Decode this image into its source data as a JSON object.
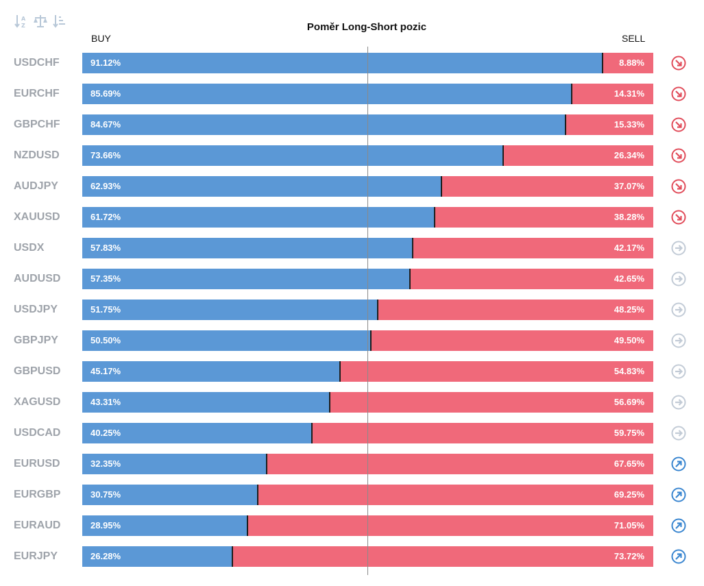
{
  "toolbar": {
    "items": [
      {
        "name": "sort-alpha-icon"
      },
      {
        "name": "balance-scale-icon"
      },
      {
        "name": "sort-list-icon"
      }
    ]
  },
  "colors": {
    "buy": "#5b98d6",
    "sell": "#f0697a",
    "down": "#e14c5a",
    "neutral": "#c2cbd6",
    "up": "#3a86d0"
  },
  "chart_data": {
    "type": "bar",
    "title": "Poměr Long-Short pozic",
    "buy_label": "BUY",
    "sell_label": "SELL",
    "categories": [
      "USDCHF",
      "EURCHF",
      "GBPCHF",
      "NZDUSD",
      "AUDJPY",
      "XAUUSD",
      "USDX",
      "AUDUSD",
      "USDJPY",
      "GBPJPY",
      "GBPUSD",
      "XAGUSD",
      "USDCAD",
      "EURUSD",
      "EURGBP",
      "EURAUD",
      "EURJPY"
    ],
    "series": [
      {
        "name": "BUY",
        "values": [
          91.12,
          85.69,
          84.67,
          73.66,
          62.93,
          61.72,
          57.83,
          57.35,
          51.75,
          50.5,
          45.17,
          43.31,
          40.25,
          32.35,
          30.75,
          28.95,
          26.28
        ],
        "labels": [
          "91.12%",
          "85.69%",
          "84.67%",
          "73.66%",
          "62.93%",
          "61.72%",
          "57.83%",
          "57.35%",
          "51.75%",
          "50.50%",
          "45.17%",
          "43.31%",
          "40.25%",
          "32.35%",
          "30.75%",
          "28.95%",
          "26.28%"
        ]
      },
      {
        "name": "SELL",
        "values": [
          8.88,
          14.31,
          15.33,
          26.34,
          37.07,
          38.28,
          42.17,
          42.65,
          48.25,
          49.5,
          54.83,
          56.69,
          59.75,
          67.65,
          69.25,
          71.05,
          73.72
        ],
        "labels": [
          "8.88%",
          "14.31%",
          "15.33%",
          "26.34%",
          "37.07%",
          "38.28%",
          "42.17%",
          "42.65%",
          "48.25%",
          "49.50%",
          "54.83%",
          "56.69%",
          "59.75%",
          "67.65%",
          "69.25%",
          "71.05%",
          "73.72%"
        ]
      }
    ],
    "trend": [
      "down",
      "down",
      "down",
      "down",
      "down",
      "down",
      "neutral",
      "neutral",
      "neutral",
      "neutral",
      "neutral",
      "neutral",
      "neutral",
      "up",
      "up",
      "up",
      "up"
    ],
    "xlim": [
      0,
      100
    ],
    "stacked": true
  }
}
